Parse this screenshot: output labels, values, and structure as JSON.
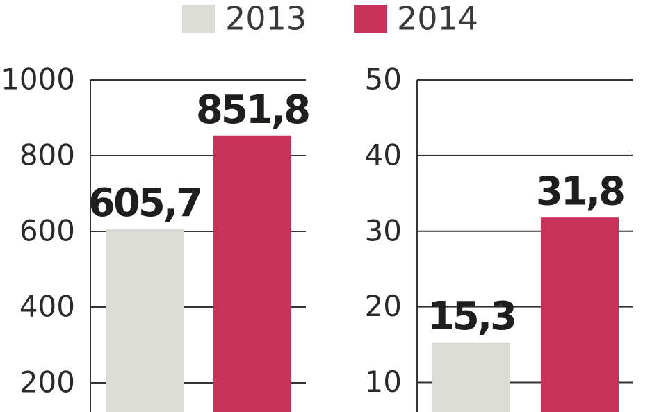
{
  "chart_data": [
    {
      "type": "bar",
      "series": [
        {
          "name": "2013",
          "color": "#dcdcd6",
          "values": [
            605.7
          ],
          "value_labels": [
            "605,7"
          ]
        },
        {
          "name": "2014",
          "color": "#c8325a",
          "values": [
            851.8
          ],
          "value_labels": [
            "851,8"
          ]
        }
      ],
      "ylim": [
        123,
        1000
      ],
      "yticks": [
        200,
        400,
        600,
        800,
        1000
      ],
      "grid": true
    },
    {
      "type": "bar",
      "series": [
        {
          "color": "#dcdcd6",
          "values": [
            15.3
          ],
          "value_labels": [
            "15,3"
          ]
        },
        {
          "color": "#c8325a",
          "values": [
            31.8
          ],
          "value_labels": [
            "31,8"
          ]
        }
      ],
      "ylim": [
        6.1,
        50
      ],
      "yticks": [
        10,
        20,
        30,
        40,
        50
      ],
      "grid": true
    }
  ]
}
